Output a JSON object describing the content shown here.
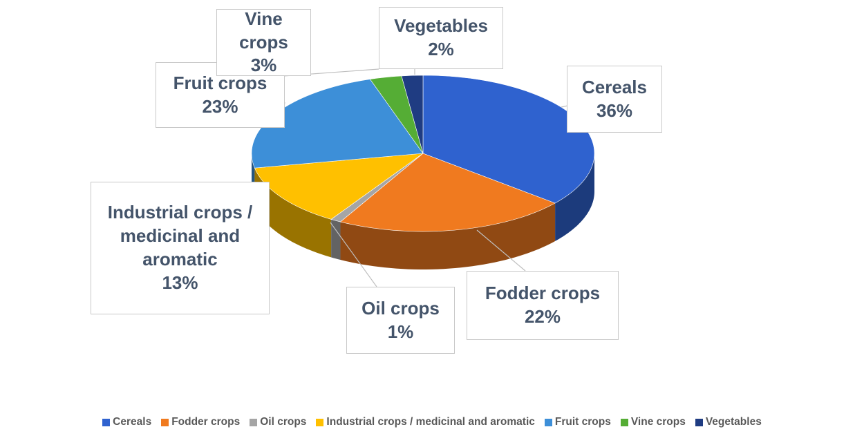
{
  "chart_data": {
    "type": "pie",
    "categories": [
      "Cereals",
      "Fodder crops",
      "Oil crops",
      "Industrial crops / medicinal and aromatic",
      "Fruit crops",
      "Vine crops",
      "Vegetables"
    ],
    "values": [
      36,
      22,
      1,
      13,
      23,
      3,
      2
    ],
    "value_labels": [
      "36%",
      "22%",
      "1%",
      "13%",
      "23%",
      "3%",
      "2%"
    ],
    "colors": [
      "#2f62cf",
      "#f07a1f",
      "#a5a5a5",
      "#ffc000",
      "#3d8fd8",
      "#55ad35",
      "#1f3c82"
    ],
    "legend": "bottom"
  }
}
